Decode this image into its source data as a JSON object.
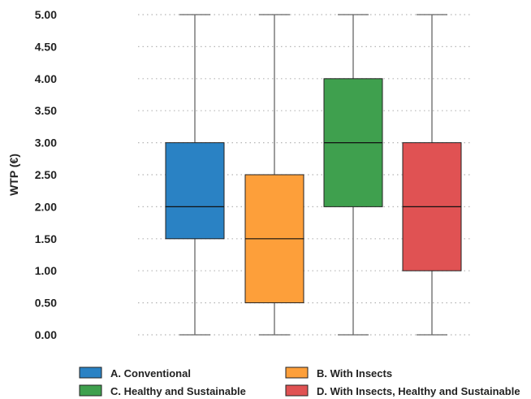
{
  "chart_data": {
    "type": "boxplot",
    "title": "",
    "xlabel": "",
    "ylabel": "WTP  (€)",
    "ylim": [
      0,
      5
    ],
    "yticks": [
      "0.00",
      "0.50",
      "1.00",
      "1.50",
      "2.00",
      "2.50",
      "3.00",
      "3.50",
      "4.00",
      "4.50",
      "5.00"
    ],
    "grid": "horizontal-dotted",
    "legend_position": "bottom",
    "series": [
      {
        "name": "A. Conventional",
        "color": "#2a82c4",
        "min": 0.0,
        "q1": 1.5,
        "median": 2.0,
        "q3": 3.0,
        "max": 5.0
      },
      {
        "name": "B. With Insects",
        "color": "#fd9f3a",
        "min": 0.0,
        "q1": 0.5,
        "median": 1.5,
        "q3": 2.5,
        "max": 5.0
      },
      {
        "name": "C. Healthy and Sustainable",
        "color": "#3fa04e",
        "min": 0.0,
        "q1": 2.0,
        "median": 3.0,
        "q3": 4.0,
        "max": 5.0
      },
      {
        "name": "D. With Insects, Healthy and Sustainable",
        "color": "#e05253",
        "min": 0.0,
        "q1": 1.0,
        "median": 2.0,
        "q3": 3.0,
        "max": 5.0
      }
    ]
  }
}
